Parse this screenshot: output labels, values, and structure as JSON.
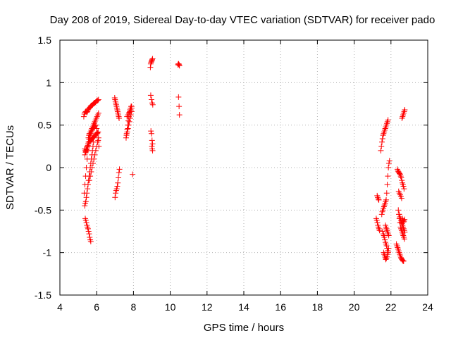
{
  "chart_data": {
    "type": "scatter",
    "title": "Day 208 of 2019, Sidereal Day-to-day VTEC variation (SDTVAR) for receiver pado",
    "xlabel": "GPS time / hours",
    "ylabel": "SDTVAR / TECUs",
    "xlim": [
      4,
      24
    ],
    "ylim": [
      -1.5,
      1.5
    ],
    "xticks": [
      4,
      6,
      8,
      10,
      12,
      14,
      16,
      18,
      20,
      22,
      24
    ],
    "yticks": [
      -1.5,
      -1,
      -0.5,
      0,
      0.5,
      1,
      1.5
    ],
    "ytick_labels": [
      "-1.5",
      "-1",
      "-0.5",
      "0",
      "0.5",
      "1",
      "1.5"
    ],
    "grid": true,
    "marker": "+",
    "color": "#ff0000",
    "series": [
      {
        "name": "SDTVAR",
        "x": [
          5.3,
          5.33,
          5.36,
          5.4,
          5.43,
          5.46,
          5.5,
          5.53,
          5.56,
          5.6,
          5.63,
          5.67,
          5.7,
          5.74,
          5.78,
          5.82,
          5.86,
          5.9,
          5.94,
          5.98,
          6.02,
          6.06,
          6.1,
          5.35,
          5.38,
          5.41,
          5.44,
          5.47,
          5.5,
          5.53,
          5.56,
          5.59,
          5.62,
          5.65,
          5.68,
          5.72,
          5.76,
          5.8,
          5.84,
          5.88,
          5.92,
          5.96,
          6.0,
          6.04,
          6.08,
          6.12,
          5.36,
          5.4,
          5.44,
          5.48,
          5.52,
          5.56,
          5.6,
          5.64,
          5.68,
          5.72,
          5.76,
          5.8,
          5.84,
          5.88,
          5.92,
          5.96,
          6.0,
          6.04,
          6.08,
          5.38,
          5.41,
          5.44,
          5.47,
          5.5,
          5.53,
          5.56,
          5.59,
          5.62,
          5.65,
          5.68,
          5.35,
          5.38,
          5.41,
          5.44,
          5.47,
          5.5,
          5.53,
          5.56,
          5.59,
          5.62,
          5.65,
          5.68,
          5.71,
          5.74,
          5.77,
          5.8,
          5.83,
          5.55,
          5.58,
          5.62,
          5.66,
          5.7,
          5.74,
          5.78,
          5.82,
          5.86,
          5.9,
          5.94,
          5.98,
          6.02,
          6.06,
          6.1,
          5.6,
          5.65,
          5.7,
          5.75,
          5.8,
          5.85,
          5.9,
          5.95,
          6.0,
          6.05,
          6.1,
          5.32,
          5.36,
          5.4,
          5.44,
          5.48,
          5.52,
          5.56,
          5.6,
          6.98,
          7.0,
          7.02,
          7.04,
          7.06,
          7.08,
          7.1,
          7.12,
          7.14,
          7.16,
          7.18,
          7.2,
          7.22,
          7.0,
          7.03,
          7.06,
          7.09,
          7.12,
          7.15,
          7.18,
          7.21,
          7.24,
          7.6,
          7.63,
          7.66,
          7.69,
          7.72,
          7.75,
          7.78,
          7.81,
          7.84,
          7.87,
          7.9,
          7.62,
          7.66,
          7.7,
          7.74,
          7.78,
          7.82,
          7.86,
          7.9,
          7.65,
          7.7,
          7.75,
          7.8,
          7.85,
          7.9,
          7.95,
          8.92,
          8.94,
          8.96,
          8.98,
          9.0,
          9.02,
          9.04,
          8.94,
          8.98,
          9.02,
          9.05,
          8.95,
          8.98,
          9.01,
          9.04,
          9.0,
          9.02,
          9.04,
          10.42,
          10.44,
          10.46,
          10.48,
          10.5,
          10.45,
          10.48,
          10.5,
          21.2,
          21.23,
          21.26,
          21.29,
          21.32,
          21.35,
          21.38,
          21.25,
          21.28,
          21.31,
          21.34,
          21.45,
          21.48,
          21.51,
          21.54,
          21.57,
          21.6,
          21.63,
          21.66,
          21.69,
          21.72,
          21.75,
          21.78,
          21.81,
          21.84,
          21.5,
          21.53,
          21.56,
          21.59,
          21.62,
          21.65,
          21.68,
          21.71,
          21.74,
          21.77,
          21.8,
          21.83,
          21.86,
          21.89,
          21.92,
          21.55,
          21.58,
          21.61,
          21.64,
          21.67,
          21.7,
          21.73,
          21.76,
          21.79,
          21.82,
          21.85,
          21.6,
          21.63,
          21.66,
          21.69,
          21.72,
          21.75,
          21.78,
          21.81,
          21.84,
          21.87,
          21.7,
          21.73,
          21.76,
          21.79,
          21.82,
          21.85,
          21.88,
          22.3,
          22.33,
          22.36,
          22.39,
          22.42,
          22.45,
          22.48,
          22.51,
          22.54,
          22.57,
          22.6,
          22.63,
          22.66,
          22.69,
          22.35,
          22.38,
          22.41,
          22.44,
          22.47,
          22.5,
          22.53,
          22.56,
          22.59,
          22.62,
          22.65,
          22.68,
          22.71,
          22.4,
          22.43,
          22.46,
          22.49,
          22.52,
          22.55,
          22.58,
          22.61,
          22.64,
          22.67,
          22.7,
          22.73,
          22.6,
          22.63,
          22.66,
          22.69,
          22.72,
          22.75,
          22.62,
          22.65,
          22.68,
          22.71,
          22.74,
          22.45,
          22.48,
          22.51,
          22.54,
          22.57,
          22.6,
          22.63,
          22.66,
          22.69,
          22.72,
          22.75,
          22.42,
          22.46,
          22.5,
          22.54,
          22.58
        ],
        "y": [
          0.6,
          0.63,
          0.65,
          0.66,
          0.66,
          0.65,
          0.66,
          0.68,
          0.69,
          0.7,
          0.71,
          0.72,
          0.73,
          0.73,
          0.74,
          0.75,
          0.76,
          0.76,
          0.77,
          0.78,
          0.79,
          0.79,
          0.8,
          0.22,
          0.2,
          0.19,
          0.2,
          0.22,
          0.25,
          0.28,
          0.3,
          0.33,
          0.35,
          0.38,
          0.4,
          0.42,
          0.44,
          0.46,
          0.47,
          0.48,
          0.49,
          0.5,
          0.46,
          0.4,
          0.32,
          0.25,
          0.15,
          0.18,
          0.21,
          0.24,
          0.26,
          0.28,
          0.3,
          0.31,
          0.32,
          0.33,
          0.34,
          0.35,
          0.36,
          0.37,
          0.38,
          0.39,
          0.4,
          0.41,
          0.42,
          -0.6,
          -0.62,
          -0.65,
          -0.68,
          -0.7,
          -0.72,
          -0.75,
          -0.78,
          -0.82,
          -0.85,
          -0.87,
          -0.45,
          -0.42,
          -0.4,
          -0.35,
          -0.3,
          -0.25,
          -0.2,
          -0.15,
          -0.1,
          -0.05,
          0.0,
          0.05,
          0.1,
          0.15,
          0.2,
          0.25,
          0.3,
          0.35,
          0.38,
          0.4,
          0.42,
          0.44,
          0.46,
          0.48,
          0.5,
          0.52,
          0.54,
          0.56,
          0.58,
          0.6,
          0.62,
          0.64,
          -0.15,
          -0.1,
          -0.05,
          0.0,
          0.05,
          0.1,
          0.15,
          0.2,
          0.25,
          0.3,
          0.35,
          -0.3,
          -0.2,
          -0.1,
          0.0,
          0.1,
          0.2,
          0.3,
          0.4,
          0.82,
          0.8,
          0.78,
          0.76,
          0.74,
          0.72,
          0.7,
          0.68,
          0.66,
          0.64,
          0.62,
          0.6,
          0.58,
          -0.35,
          -0.3,
          -0.27,
          -0.25,
          -0.22,
          -0.18,
          -0.12,
          -0.06,
          -0.02,
          0.35,
          0.4,
          0.45,
          0.5,
          0.55,
          0.6,
          0.65,
          0.68,
          0.7,
          0.72,
          0.72,
          0.38,
          0.42,
          0.46,
          0.5,
          0.54,
          0.58,
          0.62,
          0.66,
          0.6,
          0.62,
          0.64,
          0.66,
          0.68,
          0.7,
          -0.08,
          1.18,
          1.22,
          1.24,
          1.25,
          1.26,
          1.27,
          1.28,
          0.85,
          0.8,
          0.76,
          0.74,
          0.43,
          0.4,
          0.32,
          0.28,
          0.25,
          0.22,
          0.2,
          1.21,
          1.22,
          1.22,
          1.21,
          1.2,
          0.83,
          0.72,
          0.62,
          -0.6,
          -0.62,
          -0.65,
          -0.68,
          -0.7,
          -0.72,
          -0.74,
          -0.33,
          -0.35,
          -0.37,
          -0.38,
          0.2,
          0.25,
          0.3,
          0.34,
          0.38,
          0.4,
          0.42,
          0.44,
          0.46,
          0.48,
          0.5,
          0.52,
          0.54,
          0.56,
          -0.55,
          -0.52,
          -0.5,
          -0.48,
          -0.46,
          -0.44,
          -0.42,
          -0.4,
          -0.38,
          -0.3,
          -0.2,
          -0.1,
          0.0,
          0.05,
          0.08,
          -0.75,
          -0.78,
          -0.8,
          -0.82,
          -0.85,
          -0.88,
          -0.9,
          -0.92,
          -0.95,
          -0.98,
          -1.0,
          -1.0,
          -1.02,
          -1.04,
          -1.06,
          -1.08,
          -1.07,
          -1.05,
          -1.02,
          -0.98,
          -0.95,
          -0.68,
          -0.7,
          -0.72,
          -0.74,
          -0.76,
          -0.78,
          -0.8,
          -0.9,
          -0.92,
          -0.94,
          -0.96,
          -0.98,
          -1.0,
          -1.02,
          -1.04,
          -1.06,
          -1.07,
          -1.08,
          -1.09,
          -1.1,
          -1.1,
          -0.02,
          -0.04,
          -0.05,
          -0.06,
          -0.07,
          -0.08,
          -0.1,
          -0.12,
          -0.15,
          -0.18,
          -0.2,
          -0.22,
          -0.25,
          -0.5,
          -0.55,
          -0.6,
          -0.65,
          -0.7,
          -0.72,
          -0.74,
          -0.76,
          -0.78,
          -0.8,
          -0.82,
          -0.84,
          0.58,
          0.6,
          0.62,
          0.64,
          0.66,
          0.68,
          -0.6,
          -0.62,
          -0.64,
          -0.63,
          -0.61,
          -0.55,
          -0.58,
          -0.6,
          -0.62,
          -0.64,
          -0.66,
          -0.68,
          -0.7,
          -0.72,
          -0.74,
          -0.76,
          -0.28,
          -0.3,
          -0.32,
          -0.34,
          -0.36
        ]
      }
    ]
  }
}
